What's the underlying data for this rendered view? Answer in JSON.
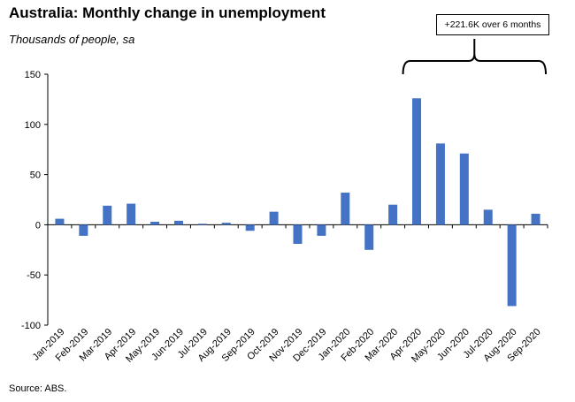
{
  "title": "Australia: Monthly change in unemployment",
  "subtitle": "Thousands of people, sa",
  "source": "Source: ABS.",
  "annotation": "+221.6K over 6 months",
  "chart_data": {
    "type": "bar",
    "title": "Australia: Monthly change in unemployment",
    "ylabel": "Thousands of people, sa",
    "xlabel": "",
    "ylim": [
      -100,
      150
    ],
    "yticks": [
      -100,
      -50,
      0,
      50,
      100,
      150
    ],
    "grid": false,
    "legend": "none",
    "bar_color": "#4472c4",
    "categories": [
      "Jan-2019",
      "Feb-2019",
      "Mar-2019",
      "Apr-2019",
      "May-2019",
      "Jun-2019",
      "Jul-2019",
      "Aug-2019",
      "Sep-2019",
      "Oct-2019",
      "Nov-2019",
      "Dec-2019",
      "Jan-2020",
      "Feb-2020",
      "Mar-2020",
      "Apr-2020",
      "May-2020",
      "Jun-2020",
      "Jul-2020",
      "Aug-2020",
      "Sep-2020"
    ],
    "values": [
      6,
      -11,
      19,
      21,
      3,
      4,
      1,
      2,
      -6,
      13,
      -19,
      -11,
      32,
      -25,
      20,
      126,
      81,
      71,
      15,
      -81,
      11
    ],
    "annotations": [
      {
        "text": "+221.6K over 6 months",
        "from_category": "Apr-2020",
        "to_category": "Sep-2020",
        "style": "bracket"
      }
    ]
  }
}
